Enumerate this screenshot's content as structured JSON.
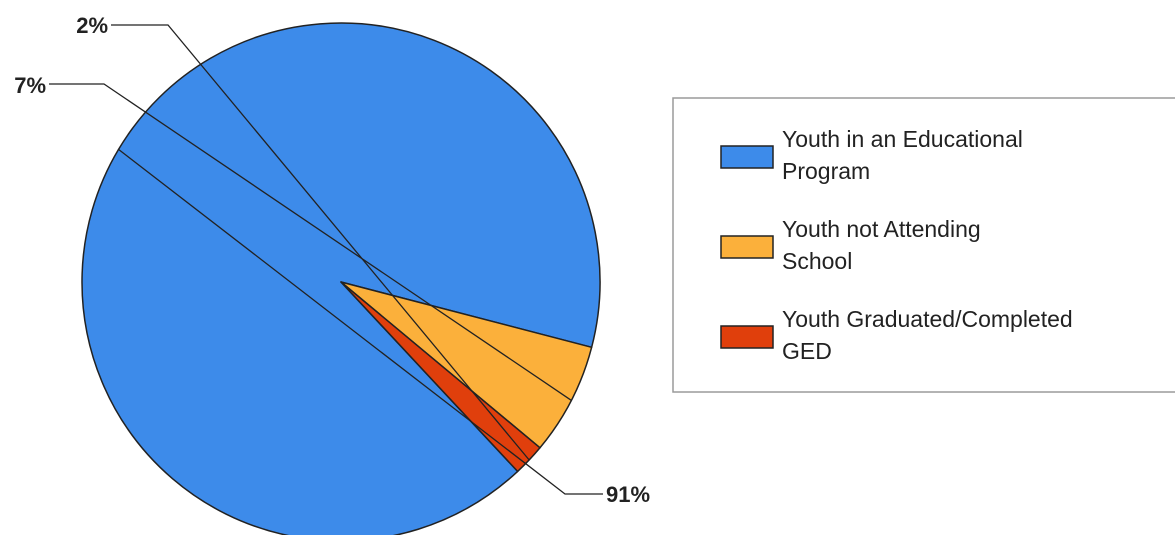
{
  "chart_data": {
    "type": "pie",
    "slices": [
      {
        "label": "Youth in an Educational Program",
        "value": 91,
        "display": "91%",
        "color": "#3d8bea"
      },
      {
        "label": "Youth not Attending School",
        "value": 7,
        "display": "7%",
        "color": "#fbb03b"
      },
      {
        "label": "Youth Graduated/Completed GED",
        "value": 2,
        "display": "2%",
        "color": "#e03f0c"
      }
    ],
    "legend": {
      "position": "right",
      "entries": [
        {
          "lines": [
            "Youth in an Educational",
            "Program"
          ],
          "color": "#3d8bea"
        },
        {
          "lines": [
            "Youth not Attending",
            "School"
          ],
          "color": "#fbb03b"
        },
        {
          "lines": [
            "Youth Graduated/Completed",
            "GED"
          ],
          "color": "#e03f0c"
        }
      ]
    }
  }
}
